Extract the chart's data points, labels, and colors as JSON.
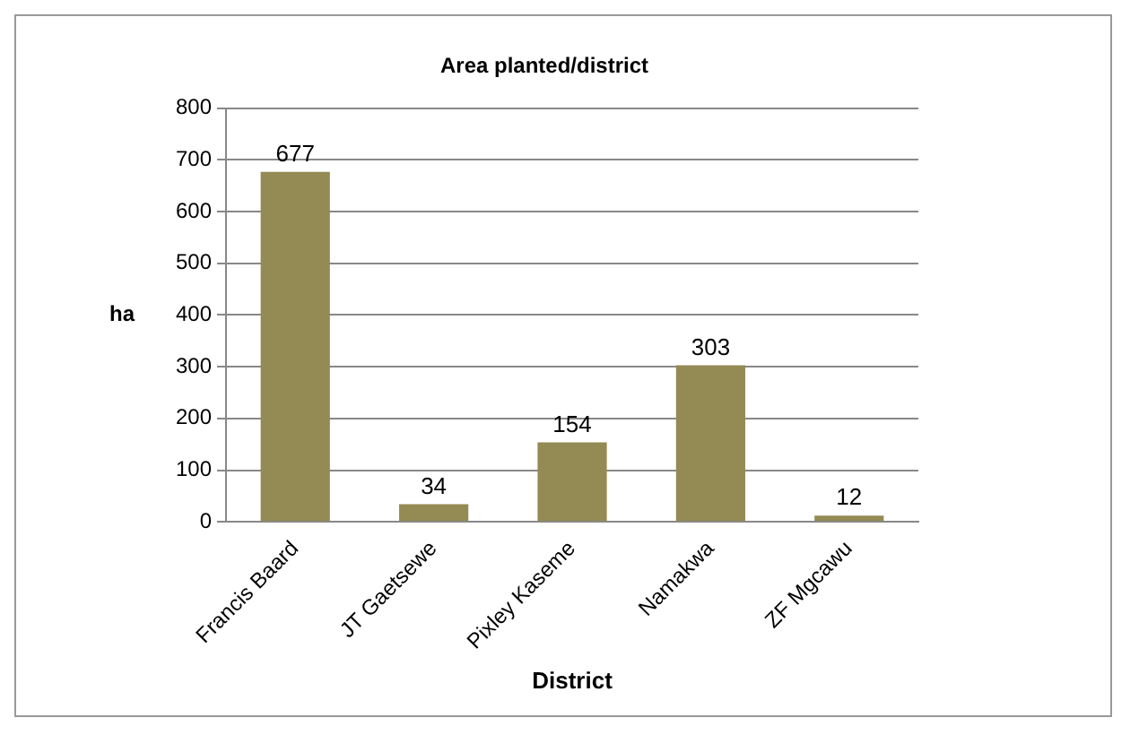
{
  "chart_data": {
    "type": "bar",
    "title": "Area planted/district",
    "xlabel": "District",
    "ylabel": "ha",
    "categories": [
      "Francis Baard",
      "JT Gaetsewe",
      "Pixley Kaseme",
      "Namakwa",
      "ZF Mgcawu"
    ],
    "values": [
      677,
      34,
      154,
      303,
      12
    ],
    "color": "#948a54",
    "ylim": [
      0,
      800
    ],
    "yticks": [
      0,
      100,
      200,
      300,
      400,
      500,
      600,
      700,
      800
    ],
    "grid": "y",
    "data_labels": true,
    "legend": false
  }
}
